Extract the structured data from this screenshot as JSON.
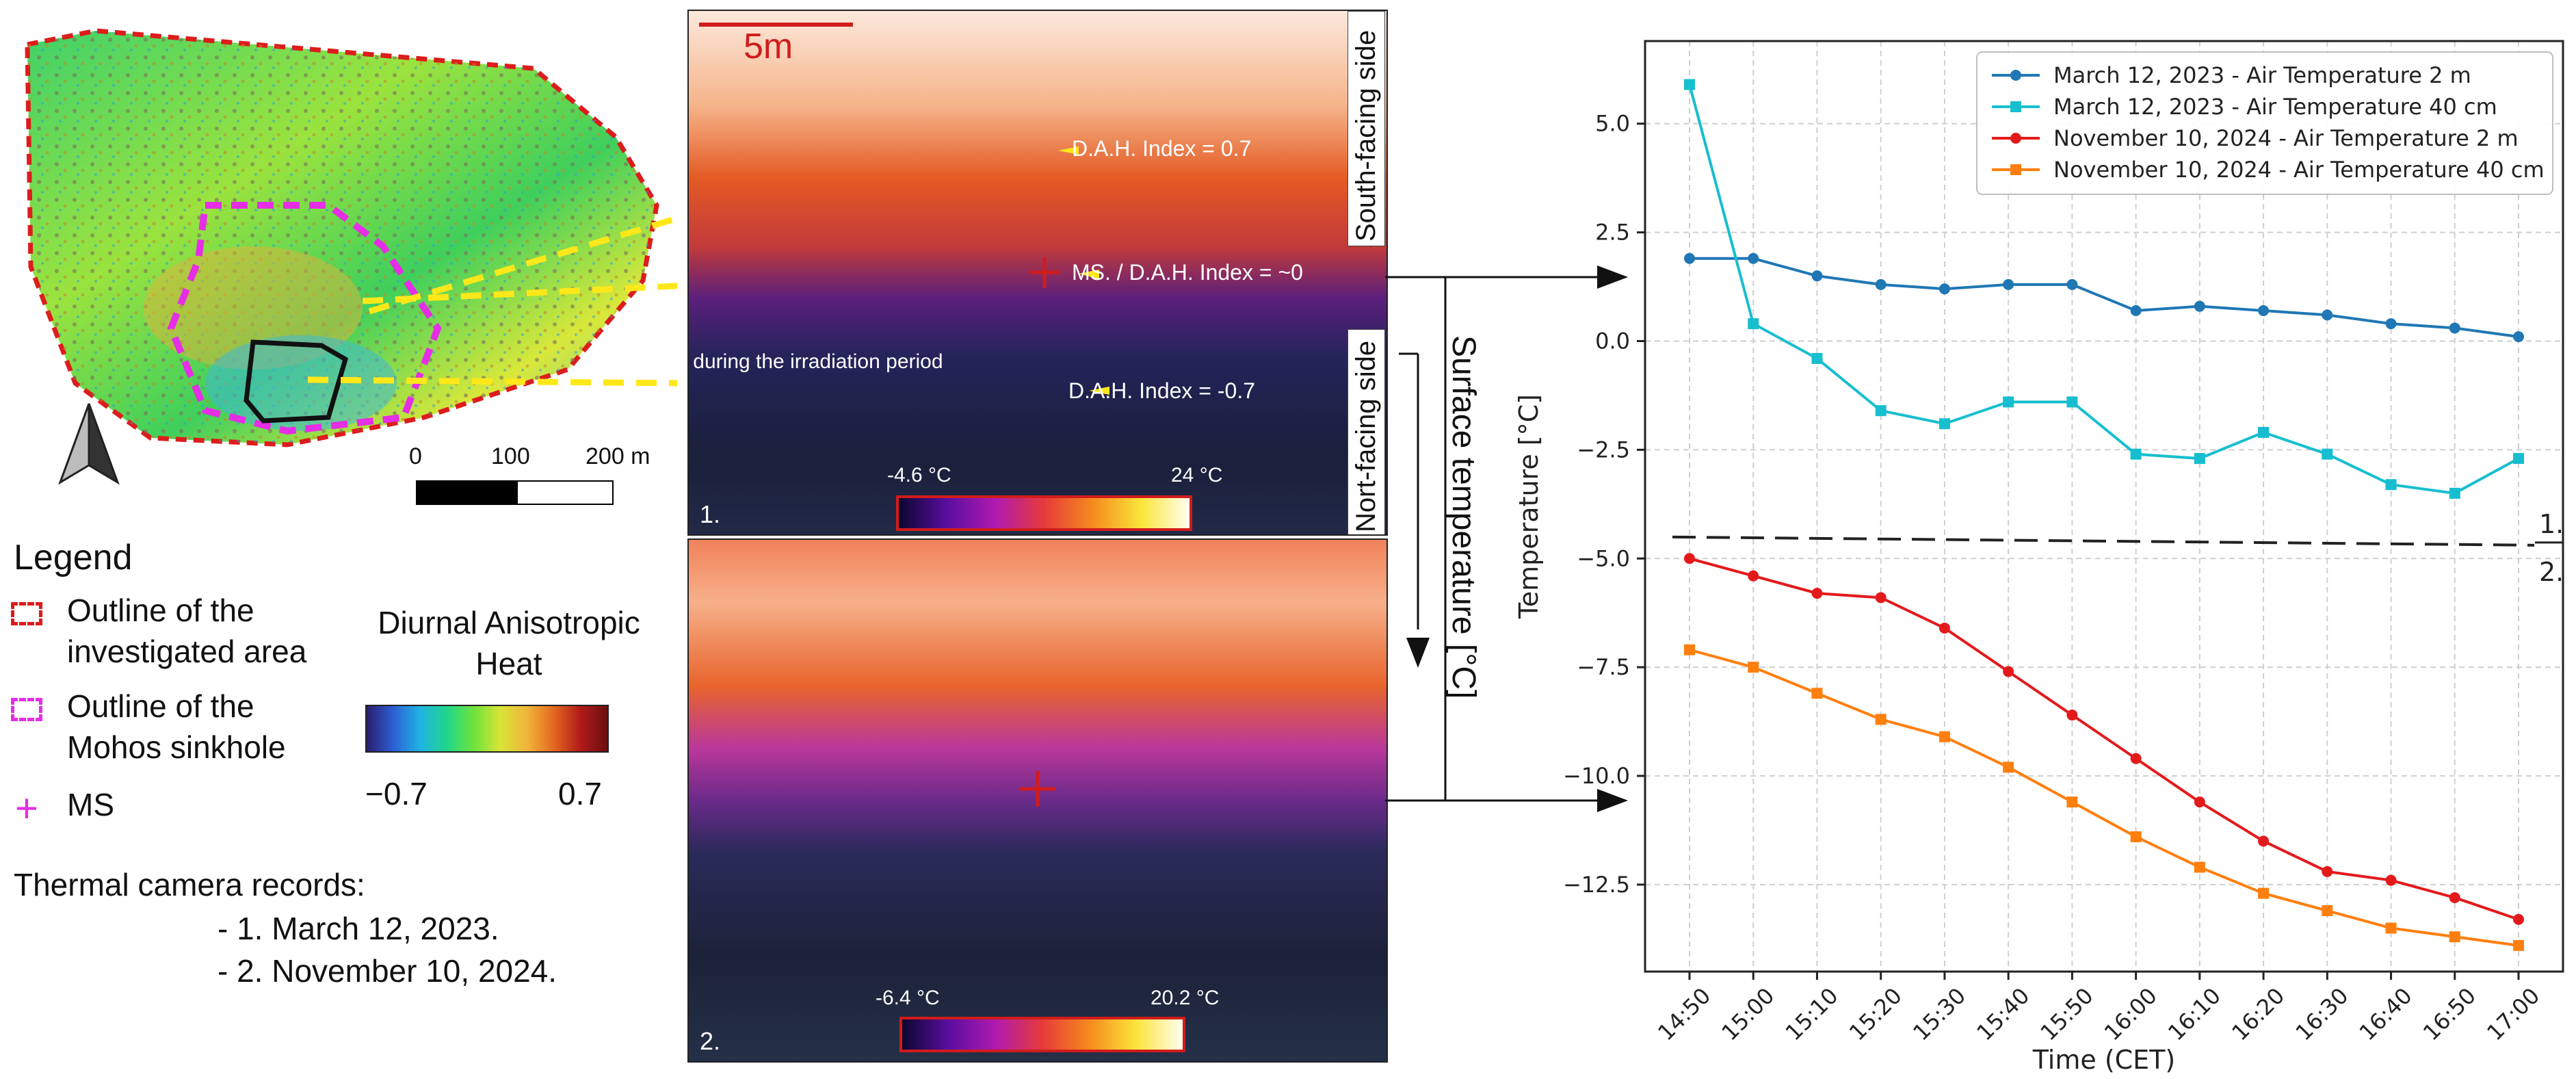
{
  "map": {
    "compass_label": "N",
    "scale_labels": [
      "0",
      "100",
      "200 m"
    ],
    "legend_title": "Legend",
    "legend_items": [
      {
        "label_line1": "Outline of the",
        "label_line2": "investigated area",
        "color": "#dd1c1c"
      },
      {
        "label_line1": "Outline of the",
        "label_line2": "Mohos sinkhole",
        "color": "#e52ee5"
      },
      {
        "label_line1": "MS",
        "label_line2": "",
        "color": "#e52ee5"
      }
    ],
    "colorbar_title_line1": "Diurnal Anisotropic",
    "colorbar_title_line2": "Heat",
    "colorbar_min": "−0.7",
    "colorbar_max": "0.7",
    "records_title": "Thermal camera records:",
    "records": [
      "- 1. March 12, 2023.",
      "- 2. November 10, 2024."
    ]
  },
  "thermal": {
    "scale_bar_label": "5m",
    "south_label": "South-facing side",
    "north_label": "Nort-facing side",
    "annotations": {
      "dah_high": "D.A.H. Index = 0.7",
      "ms": "MS. / D.A.H. Index = ~0",
      "dah_low": "D.A.H. Index = -0.7",
      "cap": "Possible location of CAP during the irradiation period"
    },
    "panel1": {
      "number": "1.",
      "cb_min": "-4.6 °C",
      "cb_max": "24 °C"
    },
    "panel2": {
      "number": "2.",
      "cb_min": "-6.4 °C",
      "cb_max": "20.2 °C"
    },
    "surface_label": "Surface temperature [°C]"
  },
  "colors": {
    "blue": "#1f77b4",
    "cyan": "#17becf",
    "red": "#e31a1c",
    "orange": "#ff7f0e"
  },
  "chart_data": {
    "type": "line",
    "title": "",
    "xlabel": "Time (CET)",
    "ylabel": "Temperature [°C]",
    "x": [
      "14:50",
      "15:00",
      "15:10",
      "15:20",
      "15:30",
      "15:40",
      "15:50",
      "16:00",
      "16:10",
      "16:20",
      "16:30",
      "16:40",
      "16:50",
      "17:00"
    ],
    "ylim": [
      -14.5,
      6.9
    ],
    "yticks": [
      5.0,
      2.5,
      0.0,
      -2.5,
      -5.0,
      -7.5,
      -10.0,
      -12.5
    ],
    "ytick_labels": [
      "5.0",
      "2.5",
      "0.0",
      "−2.5",
      "−5.0",
      "−7.5",
      "−10.0",
      "−12.5"
    ],
    "separator_y": -4.6,
    "separator_labels": [
      "1.",
      "2."
    ],
    "legend_position": "top-right",
    "series": [
      {
        "name": "March 12, 2023 - Air Temperature 2 m",
        "color": "#1f77b4",
        "marker": "circle",
        "values": [
          1.9,
          1.9,
          1.5,
          1.3,
          1.2,
          1.3,
          1.3,
          0.7,
          0.8,
          0.7,
          0.6,
          0.4,
          0.3,
          0.1
        ]
      },
      {
        "name": "March 12, 2023 - Air Temperature 40 cm",
        "color": "#17becf",
        "marker": "square",
        "values": [
          5.9,
          0.4,
          -0.4,
          -1.6,
          -1.9,
          -1.4,
          -1.4,
          -2.6,
          -2.7,
          -2.1,
          -2.6,
          -3.3,
          -3.5,
          -2.7
        ]
      },
      {
        "name": "November 10, 2024 - Air Temperature 2 m",
        "color": "#e31a1c",
        "marker": "circle",
        "values": [
          -5.0,
          -5.4,
          -5.8,
          -5.9,
          -6.6,
          -7.6,
          -8.6,
          -9.6,
          -10.6,
          -11.5,
          -12.2,
          -12.4,
          -12.8,
          -13.3
        ]
      },
      {
        "name": "November 10, 2024 - Air Temperature 40 cm",
        "color": "#ff7f0e",
        "marker": "square",
        "values": [
          -7.1,
          -7.5,
          -8.1,
          -8.7,
          -9.1,
          -9.8,
          -10.6,
          -11.4,
          -12.1,
          -12.7,
          -13.1,
          -13.5,
          -13.7,
          -13.9
        ]
      }
    ]
  }
}
